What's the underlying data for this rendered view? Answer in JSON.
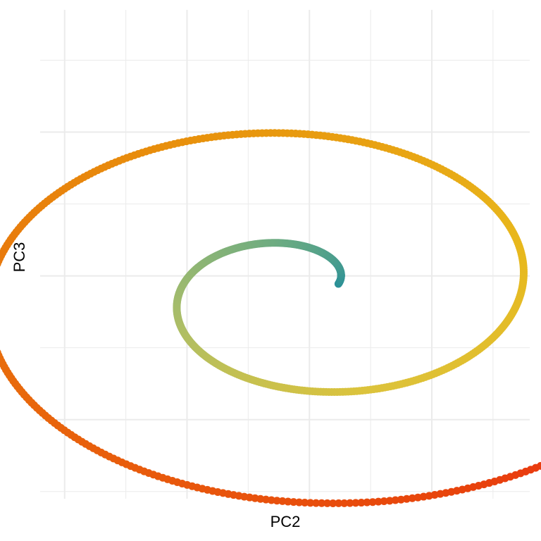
{
  "chart_data": {
    "type": "scatter",
    "title": "",
    "xlabel": "PC2",
    "ylabel": "PC3",
    "xlim": [
      -0.2,
      3.8
    ],
    "ylim": [
      -3.1,
      3.7
    ],
    "grid": true,
    "legend": "none",
    "tick_labels_shown": false,
    "x_breaks_major": [
      0,
      1,
      2,
      3
    ],
    "x_breaks_minor": [
      0.5,
      1.5,
      2.5,
      3.5
    ],
    "y_breaks_major": [
      -2,
      0,
      2
    ],
    "y_breaks_minor": [
      -3,
      -1,
      1,
      3
    ],
    "color_scale": [
      "#2a9098",
      "#6bab82",
      "#a8bd6a",
      "#dcc33c",
      "#e8b81c",
      "#e8920c",
      "#e86c0c",
      "#e8440c",
      "#ee1020"
    ],
    "spiral": {
      "center_x": 1.95,
      "center_y": -0.2,
      "theta_start": 0.3,
      "theta_end": 13.0,
      "radius_start": 0.3,
      "radius_end": 3.45,
      "n_points": 820
    }
  }
}
